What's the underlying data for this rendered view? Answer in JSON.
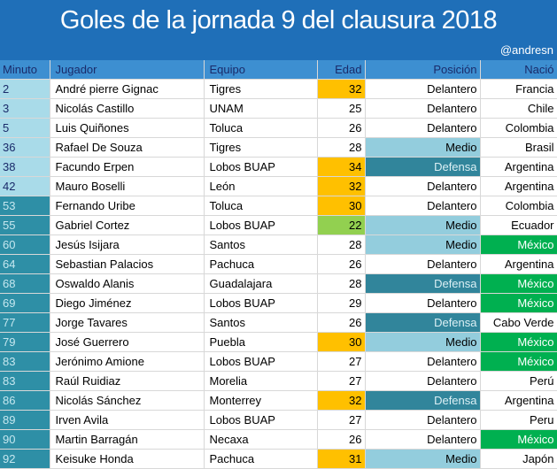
{
  "title": "Goles de la jornada 9 del clausura 2018",
  "handle": "@andresn",
  "headers": [
    "Minuto",
    "Jugador",
    "Equipo",
    "Edad",
    "Posición",
    "Nació"
  ],
  "rows": [
    {
      "minuto": "2",
      "jugador": "André pierre Gignac",
      "equipo": "Tigres",
      "edad": "32",
      "posicion": "Delantero",
      "nacio": "Francia"
    },
    {
      "minuto": "3",
      "jugador": "Nicolás Castillo",
      "equipo": "UNAM",
      "edad": "25",
      "posicion": "Delantero",
      "nacio": "Chile"
    },
    {
      "minuto": "5",
      "jugador": "Luis Quiñones",
      "equipo": "Toluca",
      "edad": "26",
      "posicion": "Delantero",
      "nacio": "Colombia"
    },
    {
      "minuto": "36",
      "jugador": "Rafael De Souza",
      "equipo": "Tigres",
      "edad": "28",
      "posicion": "Medio",
      "nacio": "Brasil"
    },
    {
      "minuto": "38",
      "jugador": "Facundo Erpen",
      "equipo": "Lobos BUAP",
      "edad": "34",
      "posicion": "Defensa",
      "nacio": "Argentina"
    },
    {
      "minuto": "42",
      "jugador": "Mauro Boselli",
      "equipo": "León",
      "edad": "32",
      "posicion": "Delantero",
      "nacio": "Argentina"
    },
    {
      "minuto": "53",
      "jugador": "Fernando Uribe",
      "equipo": "Toluca",
      "edad": "30",
      "posicion": "Delantero",
      "nacio": "Colombia"
    },
    {
      "minuto": "55",
      "jugador": "Gabriel Cortez",
      "equipo": "Lobos BUAP",
      "edad": "22",
      "posicion": "Medio",
      "nacio": "Ecuador"
    },
    {
      "minuto": "60",
      "jugador": "Jesús Isijara",
      "equipo": "Santos",
      "edad": "28",
      "posicion": "Medio",
      "nacio": "México"
    },
    {
      "minuto": "64",
      "jugador": "Sebastian Palacios",
      "equipo": "Pachuca",
      "edad": "26",
      "posicion": "Delantero",
      "nacio": "Argentina"
    },
    {
      "minuto": "68",
      "jugador": "Oswaldo Alanis",
      "equipo": "Guadalajara",
      "edad": "28",
      "posicion": "Defensa",
      "nacio": "México"
    },
    {
      "minuto": "69",
      "jugador": "Diego Jiménez",
      "equipo": "Lobos BUAP",
      "edad": "29",
      "posicion": "Delantero",
      "nacio": "México"
    },
    {
      "minuto": "77",
      "jugador": "Jorge Tavares",
      "equipo": "Santos",
      "edad": "26",
      "posicion": "Defensa",
      "nacio": "Cabo Verde"
    },
    {
      "minuto": "79",
      "jugador": "José Guerrero",
      "equipo": "Puebla",
      "edad": "30",
      "posicion": "Medio",
      "nacio": "México"
    },
    {
      "minuto": "83",
      "jugador": "Jerónimo Amione",
      "equipo": "Lobos BUAP",
      "edad": "27",
      "posicion": "Delantero",
      "nacio": "México"
    },
    {
      "minuto": "83",
      "jugador": "Raúl Ruidiaz",
      "equipo": "Morelia",
      "edad": "27",
      "posicion": "Delantero",
      "nacio": "Perú"
    },
    {
      "minuto": "86",
      "jugador": "Nicolás Sánchez",
      "equipo": "Monterrey",
      "edad": "32",
      "posicion": "Defensa",
      "nacio": "Argentina"
    },
    {
      "minuto": "89",
      "jugador": "Irven Avila",
      "equipo": "Lobos BUAP",
      "edad": "27",
      "posicion": "Delantero",
      "nacio": "Peru"
    },
    {
      "minuto": "90",
      "jugador": "Martin Barragán",
      "equipo": "Necaxa",
      "edad": "26",
      "posicion": "Delantero",
      "nacio": "México"
    },
    {
      "minuto": "92",
      "jugador": "Keisuke Honda",
      "equipo": "Pachuca",
      "edad": "31",
      "posicion": "Medio",
      "nacio": "Japón"
    }
  ],
  "colors": {
    "title_bg": "#1f6fb8",
    "header_bg": "#3d8fd1",
    "minute_first_half": "#a9dbe9",
    "minute_second_half": "#2e8fa6",
    "age_30_plus": "#ffc000",
    "age_young": "#92d050",
    "medio": "#93cddd",
    "defensa": "#31859b",
    "mexico": "#00b050"
  }
}
